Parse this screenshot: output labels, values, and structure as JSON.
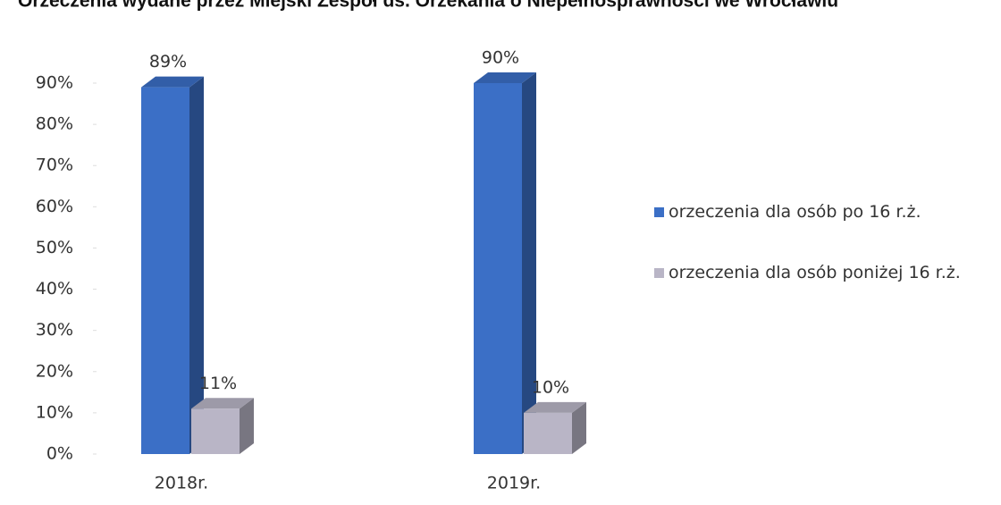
{
  "chart_data": {
    "type": "bar3d",
    "title": "Orzeczenia wydane przez Miejski Zespół ds. Orzekania o Niepełnosprawności we Wrocławiu",
    "categories": [
      "2018r.",
      "2019r."
    ],
    "series": [
      {
        "name": "orzeczenia dla osób po 16 r.ż.",
        "color": "#3b6fc6",
        "values": [
          89,
          90
        ],
        "value_labels": [
          "89%",
          "90%"
        ]
      },
      {
        "name": "orzeczenia dla osób poniżej 16 r.ż.",
        "color": "#b9b5c6",
        "values": [
          11,
          10
        ],
        "value_labels": [
          "11%",
          "10%"
        ]
      }
    ],
    "ylim": [
      0,
      90
    ],
    "yticks": [
      {
        "value": 0,
        "label": "0%"
      },
      {
        "value": 10,
        "label": "10%"
      },
      {
        "value": 20,
        "label": "20%"
      },
      {
        "value": 30,
        "label": "30%"
      },
      {
        "value": 40,
        "label": "40%"
      },
      {
        "value": 50,
        "label": "50%"
      },
      {
        "value": 60,
        "label": "60%"
      },
      {
        "value": 70,
        "label": "70%"
      },
      {
        "value": 80,
        "label": "80%"
      },
      {
        "value": 90,
        "label": "90%"
      }
    ],
    "legend": "right"
  }
}
